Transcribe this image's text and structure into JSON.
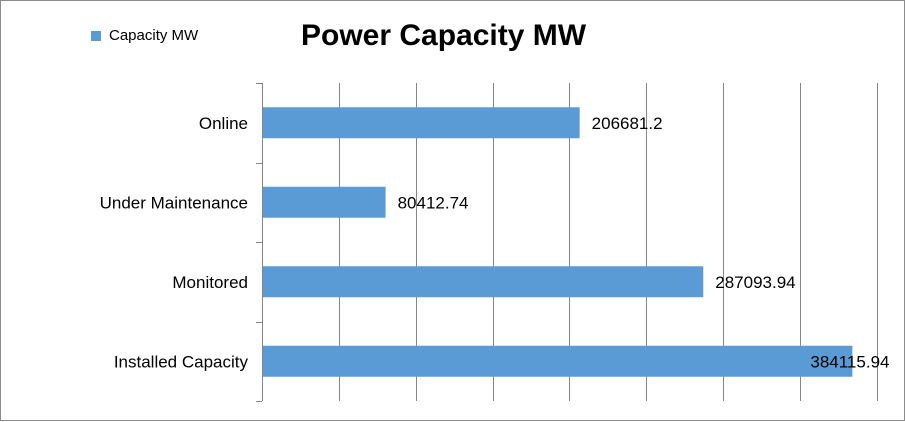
{
  "chart_data": {
    "type": "bar",
    "orientation": "horizontal",
    "title": "Power Capacity MW",
    "xlabel": "",
    "ylabel": "",
    "categories": [
      "Online",
      "Under Maintenance",
      "Monitored",
      "Installed Capacity"
    ],
    "series": [
      {
        "name": "Capacity MW",
        "values": [
          206681.2,
          80412.74,
          287093.94,
          384115.94
        ],
        "value_labels": [
          "206681.2",
          "80412.74",
          "287093.94",
          "384115.94"
        ],
        "color": "#5b9bd5"
      }
    ],
    "xlim": [
      0,
      400000
    ],
    "x_gridline_step": 50000,
    "grid": true,
    "x_tick_labels_visible": false,
    "legend": {
      "position": "top-left"
    }
  }
}
